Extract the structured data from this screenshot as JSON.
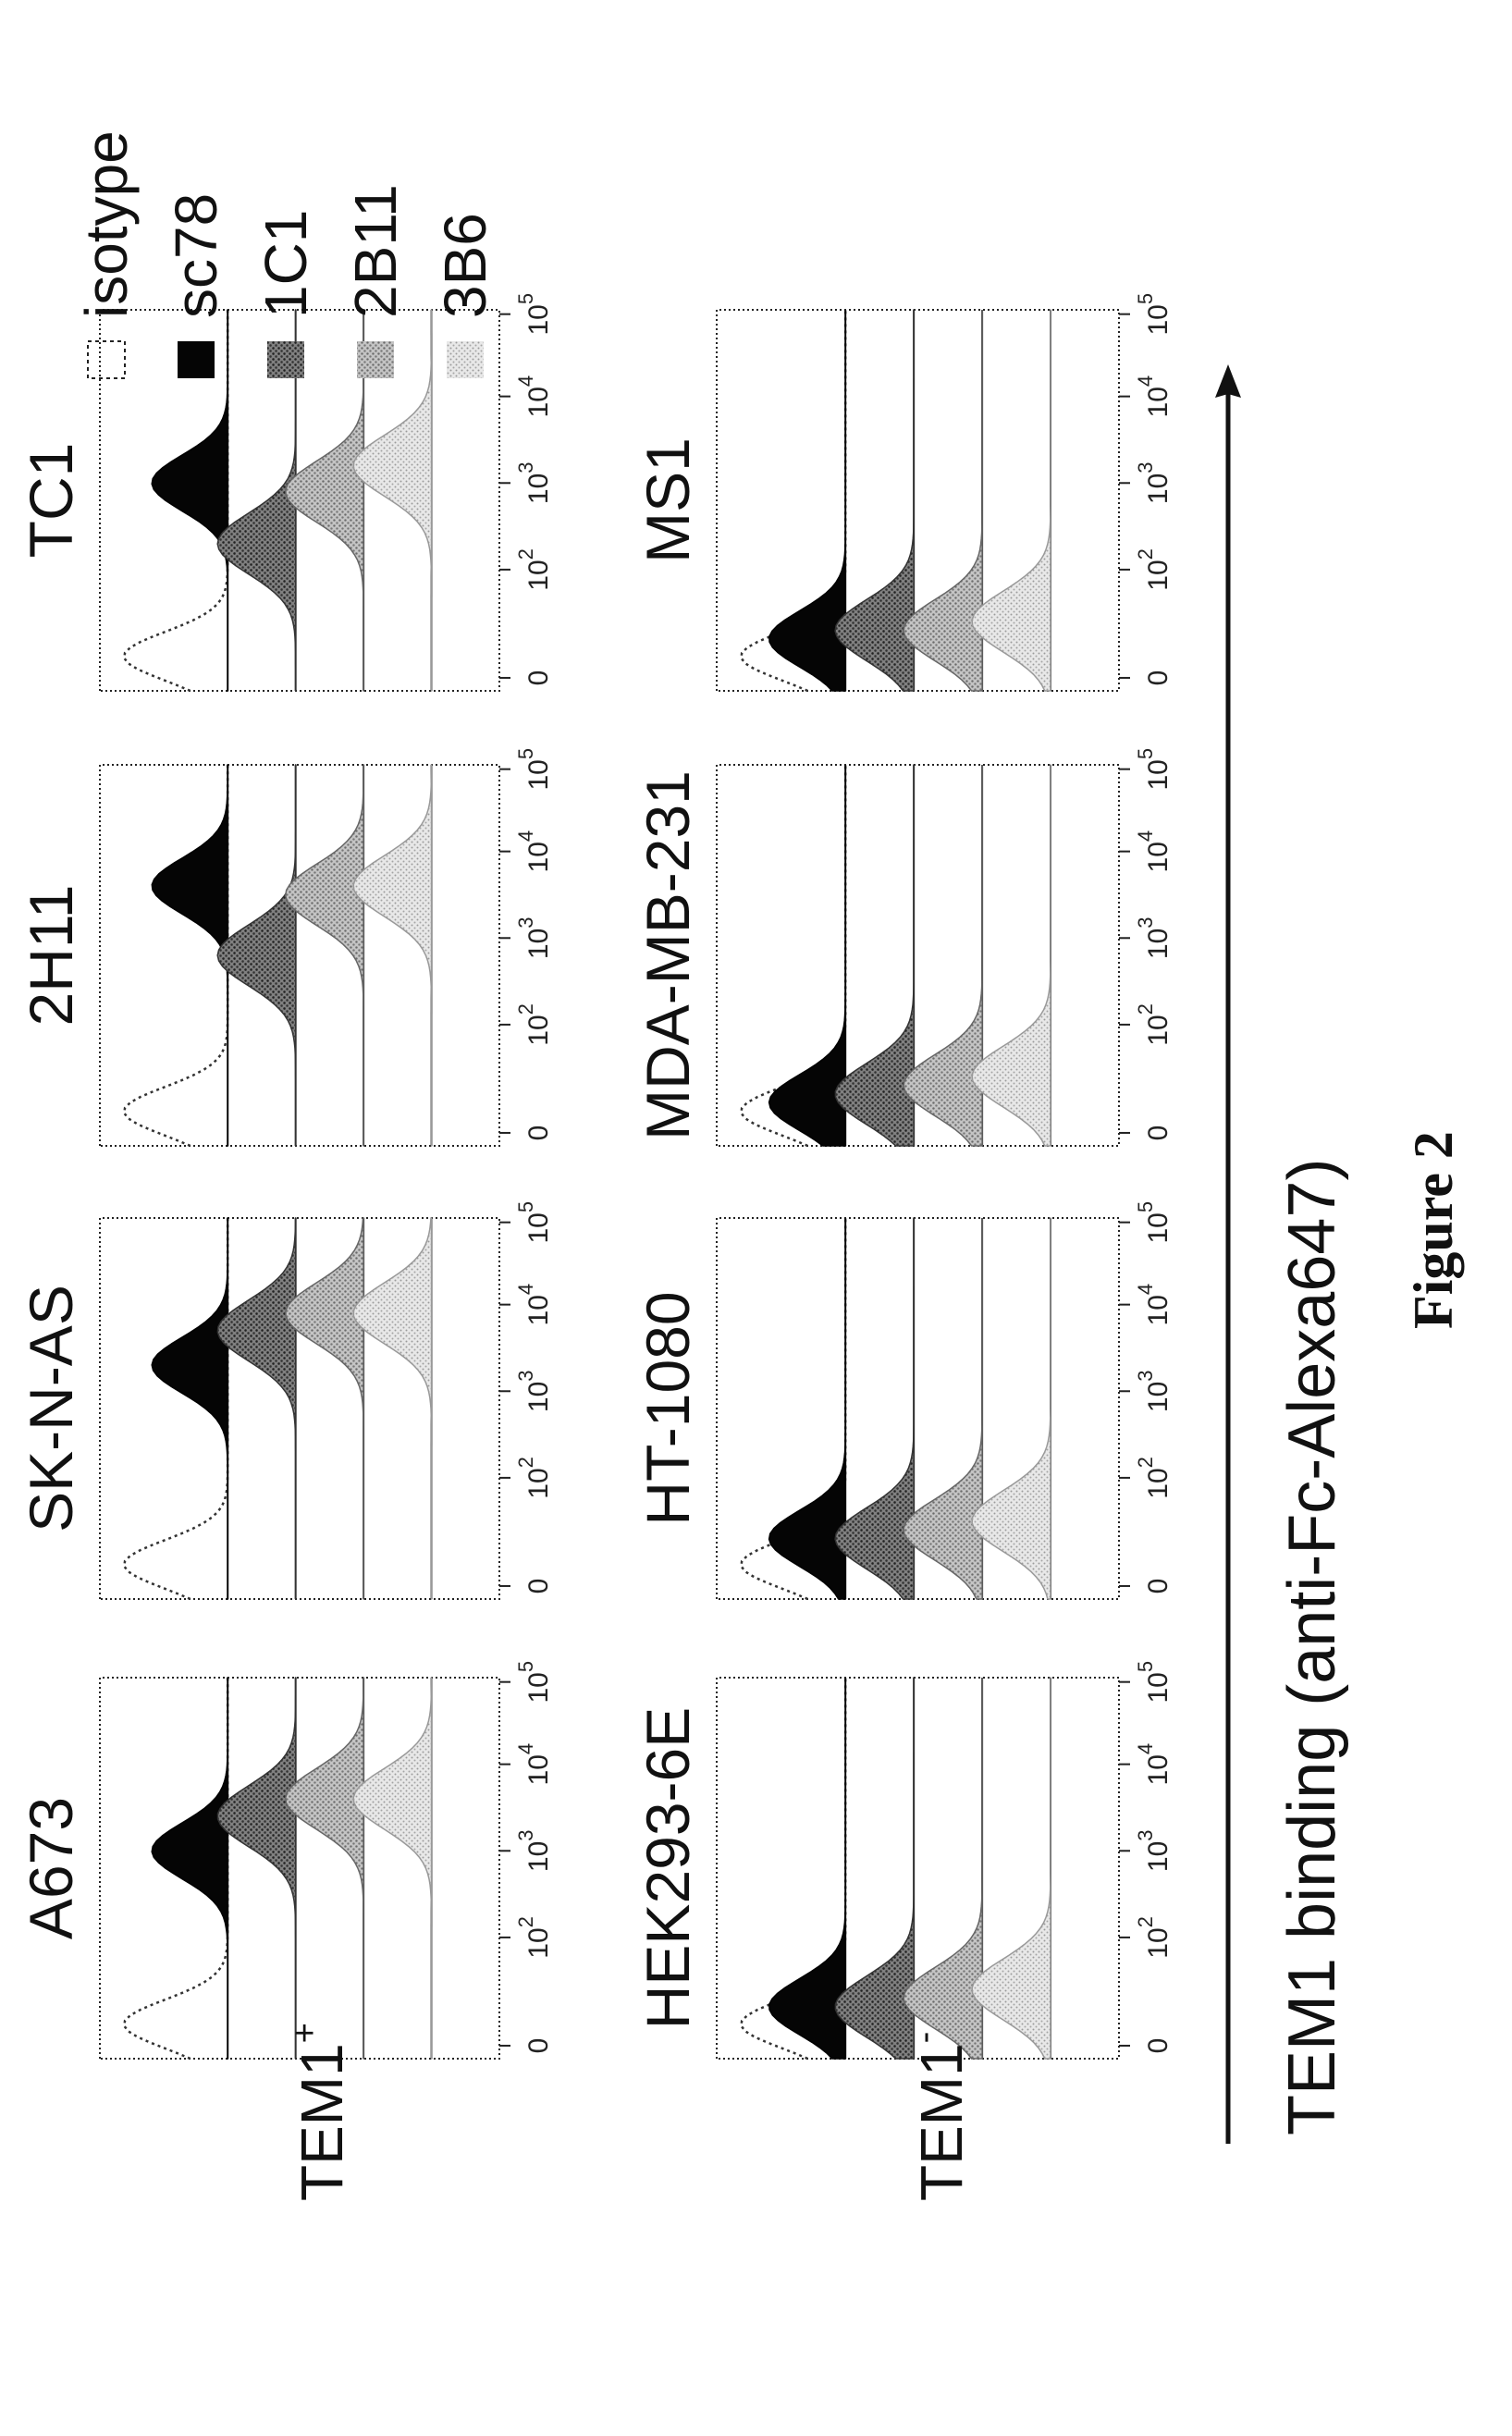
{
  "figure": {
    "title": "Figure 2",
    "axis_label": "TEM1 binding  (anti-Fc-Alexa647)",
    "row_labels": [
      {
        "base": "TEM1",
        "sup": "+"
      },
      {
        "base": "TEM1",
        "sup": "-"
      }
    ],
    "tick_labels": [
      {
        "base": "0",
        "exp": ""
      },
      {
        "base": "10",
        "exp": "2"
      },
      {
        "base": "10",
        "exp": "3"
      },
      {
        "base": "10",
        "exp": "4"
      },
      {
        "base": "10",
        "exp": "5"
      }
    ]
  },
  "chart_data": {
    "type": "area",
    "x_scale": "log (flow cytometry: 0, 10^2, 10^3, 10^4, 10^5)",
    "legend": {
      "placement": "top-right",
      "entries": [
        {
          "name": "isotype",
          "color": "#ffffff",
          "style": "dashed-outline"
        },
        {
          "name": "sc78",
          "color": "#050505",
          "style": "solid"
        },
        {
          "name": "1C1",
          "color": "#555555",
          "style": "dotted"
        },
        {
          "name": "2B11",
          "color": "#9a9a9a",
          "style": "dotted"
        },
        {
          "name": "3B6",
          "color": "#cfcfcf",
          "style": "dotted"
        }
      ]
    },
    "panels": [
      {
        "label": "A673",
        "group": "TEM1+",
        "peaks": {
          "isotype": 1.0,
          "sc78": 3.0,
          "1C1": 3.4,
          "2B11": 3.6,
          "3B6": 3.6
        }
      },
      {
        "label": "SK-N-AS",
        "group": "TEM1+",
        "peaks": {
          "isotype": 1.0,
          "sc78": 3.3,
          "1C1": 3.7,
          "2B11": 3.9,
          "3B6": 3.9
        }
      },
      {
        "label": "2H11",
        "group": "TEM1+",
        "peaks": {
          "isotype": 1.0,
          "sc78": 3.6,
          "1C1": 2.8,
          "2B11": 3.5,
          "3B6": 3.6
        }
      },
      {
        "label": "TC1",
        "group": "TEM1+",
        "peaks": {
          "isotype": 1.0,
          "sc78": 3.0,
          "1C1": 2.3,
          "2B11": 2.9,
          "3B6": 3.2
        }
      },
      {
        "label": "HEK293-6E",
        "group": "TEM1-",
        "peaks": {
          "isotype": 1.0,
          "sc78": 1.2,
          "1C1": 1.2,
          "2B11": 1.3,
          "3B6": 1.4
        }
      },
      {
        "label": "HT-1080",
        "group": "TEM1-",
        "peaks": {
          "isotype": 1.0,
          "sc78": 1.3,
          "1C1": 1.3,
          "2B11": 1.4,
          "3B6": 1.5
        }
      },
      {
        "label": "MDA-MB-231",
        "group": "TEM1-",
        "peaks": {
          "isotype": 1.0,
          "sc78": 1.1,
          "1C1": 1.2,
          "2B11": 1.3,
          "3B6": 1.4
        }
      },
      {
        "label": "MS1",
        "group": "TEM1-",
        "peaks": {
          "isotype": 1.0,
          "sc78": 1.2,
          "1C1": 1.3,
          "2B11": 1.3,
          "3B6": 1.4
        }
      }
    ]
  }
}
